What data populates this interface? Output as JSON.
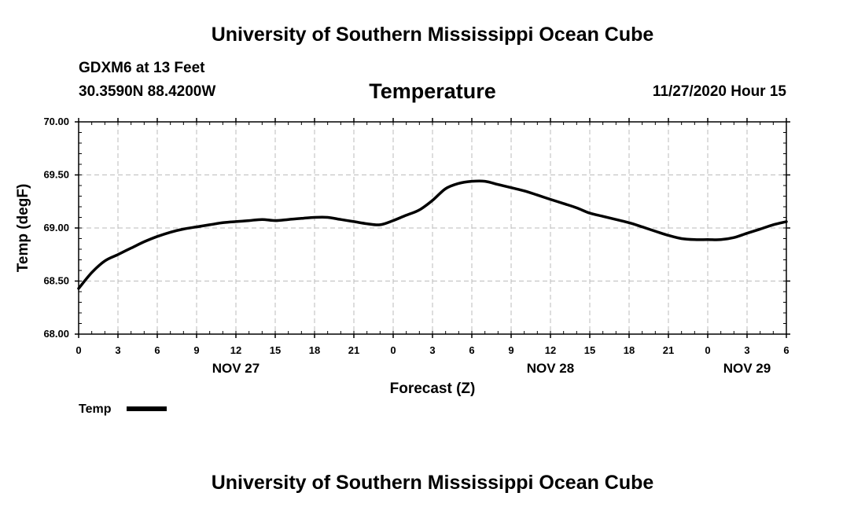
{
  "header": {
    "title": "University of Southern Mississippi Ocean Cube",
    "station": "GDXM6 at 13 Feet",
    "coords": "30.3590N 88.4200W",
    "chart_title": "Temperature",
    "timestamp": "11/27/2020 Hour 15"
  },
  "footer": {
    "title": "University of Southern Mississippi Ocean Cube"
  },
  "colors": {
    "line": "#000000",
    "grid": "#bbbbbb",
    "axis": "#000000"
  },
  "chart_data": {
    "type": "line",
    "title": "Temperature",
    "xlabel": "Forecast (Z)",
    "ylabel": "Temp (degF)",
    "ylim": [
      68.0,
      70.0
    ],
    "xlim": [
      0,
      54
    ],
    "grid": true,
    "y_ticks": [
      "68.00",
      "68.50",
      "69.00",
      "69.50",
      "70.00"
    ],
    "x_ticks": [
      "0",
      "3",
      "6",
      "9",
      "12",
      "15",
      "18",
      "21",
      "0",
      "3",
      "6",
      "9",
      "12",
      "15",
      "18",
      "21",
      "0",
      "3",
      "6"
    ],
    "day_labels": [
      {
        "label": "NOV 27",
        "hour": 12
      },
      {
        "label": "NOV 28",
        "hour": 36
      },
      {
        "label": "NOV 29",
        "hour": 51
      }
    ],
    "legend": {
      "entries": [
        "Temp"
      ],
      "placement": "bottom-left"
    },
    "series": [
      {
        "name": "Temp",
        "x": [
          0,
          1,
          2,
          3,
          4,
          5,
          6,
          7,
          8,
          9,
          10,
          11,
          12,
          13,
          14,
          15,
          16,
          17,
          18,
          19,
          20,
          21,
          22,
          23,
          24,
          25,
          26,
          27,
          28,
          29,
          30,
          31,
          32,
          33,
          34,
          35,
          36,
          37,
          38,
          39,
          40,
          41,
          42,
          43,
          44,
          45,
          46,
          47,
          48,
          49,
          50,
          51,
          52,
          53,
          54
        ],
        "values": [
          68.43,
          68.58,
          68.69,
          68.75,
          68.81,
          68.87,
          68.92,
          68.96,
          68.99,
          69.01,
          69.03,
          69.05,
          69.06,
          69.07,
          69.08,
          69.07,
          69.08,
          69.09,
          69.1,
          69.1,
          69.08,
          69.06,
          69.04,
          69.03,
          69.07,
          69.12,
          69.17,
          69.26,
          69.37,
          69.42,
          69.44,
          69.44,
          69.41,
          69.38,
          69.35,
          69.31,
          69.27,
          69.23,
          69.19,
          69.14,
          69.11,
          69.08,
          69.05,
          69.01,
          68.97,
          68.93,
          68.9,
          68.89,
          68.89,
          68.89,
          68.91,
          68.95,
          68.99,
          69.03,
          69.06
        ]
      }
    ]
  }
}
